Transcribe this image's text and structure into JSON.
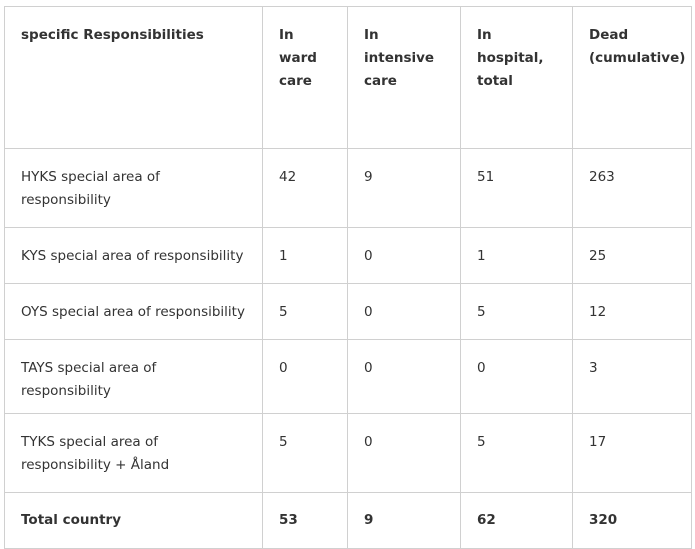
{
  "table": {
    "header": [
      "specific Responsibilities",
      "In ward care",
      "In intensive care",
      "In hospital, total",
      "Dead (cumulative)"
    ],
    "rows": [
      [
        "HYKS  special area of responsibility",
        42,
        9,
        51,
        263
      ],
      [
        "KYS special area of responsibility",
        1,
        0,
        1,
        25
      ],
      [
        "OYS special area of responsibility",
        5,
        0,
        5,
        12
      ],
      [
        "TAYS special area of responsibility",
        0,
        0,
        0,
        3
      ],
      [
        "TYKS special area of responsibility + Åland",
        5,
        0,
        5,
        17
      ],
      [
        "Total country",
        53,
        9,
        62,
        320
      ]
    ]
  }
}
